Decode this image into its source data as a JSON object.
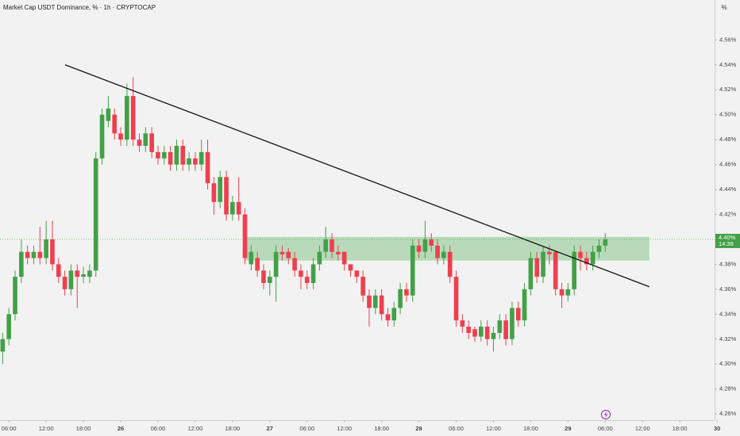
{
  "chart_data": {
    "type": "candlestick",
    "title": "Market Cap USDT Dominance, % · 1h · CRYPTOCAP",
    "unit_label": "%",
    "price_label": "4.40%",
    "countdown": "14:38",
    "up_color": "#43a047",
    "down_color": "#ef3f4f",
    "open": [
      4.31,
      4.32,
      4.34,
      4.37,
      4.39,
      4.385,
      4.39,
      4.385,
      4.4,
      4.38,
      4.37,
      4.36,
      4.375,
      4.37,
      4.37,
      4.375,
      4.465,
      4.495,
      4.5,
      4.485,
      4.48,
      4.515,
      4.48,
      4.475,
      4.485,
      4.47,
      4.465,
      4.47,
      4.46,
      4.475,
      4.46,
      4.465,
      4.46,
      4.47,
      4.445,
      4.43,
      4.45,
      4.42,
      4.43,
      4.42,
      4.38,
      4.385,
      4.375,
      4.365,
      4.37,
      4.39,
      4.39,
      4.385,
      4.375,
      4.37,
      4.365,
      4.38,
      4.39,
      4.4,
      4.39,
      4.39,
      4.38,
      4.375,
      4.37,
      4.355,
      4.345,
      4.355,
      4.34,
      4.335,
      4.345,
      4.36,
      4.355,
      4.395,
      4.39,
      4.4,
      4.395,
      4.385,
      4.39,
      4.37,
      4.335,
      4.33,
      4.328,
      4.322,
      4.33,
      4.32,
      4.325,
      4.335,
      4.32,
      4.345,
      4.335,
      4.36,
      4.385,
      4.37,
      4.39,
      4.39,
      4.36,
      4.355,
      4.36,
      4.39,
      4.385,
      4.38,
      4.39,
      4.395
    ],
    "close": [
      4.32,
      4.34,
      4.37,
      4.39,
      4.385,
      4.39,
      4.385,
      4.4,
      4.38,
      4.37,
      4.36,
      4.375,
      4.37,
      4.372,
      4.375,
      4.465,
      4.5,
      4.505,
      4.485,
      4.48,
      4.515,
      4.48,
      4.475,
      4.485,
      4.47,
      4.465,
      4.47,
      4.46,
      4.475,
      4.46,
      4.465,
      4.46,
      4.47,
      4.445,
      4.43,
      4.45,
      4.42,
      4.43,
      4.42,
      4.385,
      4.39,
      4.375,
      4.365,
      4.37,
      4.39,
      4.388,
      4.385,
      4.375,
      4.37,
      4.365,
      4.38,
      4.39,
      4.4,
      4.39,
      4.388,
      4.38,
      4.375,
      4.37,
      4.355,
      4.345,
      4.355,
      4.34,
      4.335,
      4.345,
      4.36,
      4.355,
      4.395,
      4.39,
      4.4,
      4.395,
      4.385,
      4.39,
      4.37,
      4.335,
      4.33,
      4.325,
      4.322,
      4.33,
      4.32,
      4.325,
      4.335,
      4.32,
      4.345,
      4.335,
      4.36,
      4.385,
      4.37,
      4.39,
      4.388,
      4.36,
      4.355,
      4.36,
      4.39,
      4.385,
      4.38,
      4.39,
      4.395,
      4.4
    ],
    "high": [
      4.325,
      4.345,
      4.375,
      4.4,
      4.395,
      4.395,
      4.41,
      4.415,
      4.415,
      4.385,
      4.375,
      4.38,
      4.38,
      4.378,
      4.38,
      4.47,
      4.505,
      4.515,
      4.505,
      4.49,
      4.525,
      4.53,
      4.485,
      4.49,
      4.49,
      4.475,
      4.475,
      4.475,
      4.48,
      4.48,
      4.47,
      4.47,
      4.48,
      4.48,
      4.45,
      4.455,
      4.455,
      4.435,
      4.45,
      4.425,
      4.395,
      4.39,
      4.38,
      4.375,
      4.395,
      4.395,
      4.393,
      4.39,
      4.38,
      4.375,
      4.385,
      4.395,
      4.41,
      4.405,
      4.395,
      4.39,
      4.38,
      4.375,
      4.375,
      4.36,
      4.36,
      4.36,
      4.345,
      4.35,
      4.365,
      4.365,
      4.4,
      4.4,
      4.415,
      4.405,
      4.4,
      4.395,
      4.395,
      4.375,
      4.34,
      4.335,
      4.33,
      4.335,
      4.335,
      4.33,
      4.34,
      4.34,
      4.35,
      4.35,
      4.365,
      4.39,
      4.39,
      4.395,
      4.395,
      4.39,
      4.365,
      4.365,
      4.395,
      4.395,
      4.39,
      4.395,
      4.4,
      4.405
    ],
    "low": [
      4.3,
      4.315,
      4.335,
      4.365,
      4.38,
      4.38,
      4.38,
      4.38,
      4.375,
      4.365,
      4.355,
      4.355,
      4.345,
      4.365,
      4.365,
      4.37,
      4.46,
      4.49,
      4.48,
      4.475,
      4.475,
      4.475,
      4.47,
      4.47,
      4.465,
      4.46,
      4.46,
      4.455,
      4.455,
      4.455,
      4.455,
      4.455,
      4.455,
      4.44,
      4.42,
      4.425,
      4.415,
      4.415,
      4.415,
      4.38,
      4.375,
      4.37,
      4.36,
      4.355,
      4.35,
      4.383,
      4.38,
      4.37,
      4.36,
      4.36,
      4.36,
      4.375,
      4.385,
      4.385,
      4.383,
      4.375,
      4.37,
      4.365,
      4.35,
      4.33,
      4.34,
      4.335,
      4.33,
      4.33,
      4.34,
      4.35,
      4.35,
      4.385,
      4.385,
      4.39,
      4.38,
      4.38,
      4.365,
      4.33,
      4.325,
      4.32,
      4.318,
      4.318,
      4.315,
      4.31,
      4.32,
      4.315,
      4.315,
      4.33,
      4.33,
      4.355,
      4.365,
      4.365,
      4.38,
      4.355,
      4.345,
      4.35,
      4.355,
      4.375,
      4.375,
      4.375,
      4.385,
      4.39
    ],
    "trendline": {
      "x": [
        10.05,
        104.1
      ],
      "y": [
        4.54,
        4.362
      ]
    },
    "zone": {
      "x": [
        38.9,
        104.1
      ],
      "y": [
        4.383,
        4.402
      ]
    },
    "xlim": [
      -0.43,
      114.6
    ],
    "ylim": [
      4.255,
      4.592
    ],
    "xticks": [
      {
        "value": 1,
        "label": "06:00"
      },
      {
        "value": 7,
        "label": "12:00"
      },
      {
        "value": 13,
        "label": "18:00"
      },
      {
        "value": 19,
        "label": "26"
      },
      {
        "value": 25,
        "label": "06:00"
      },
      {
        "value": 31,
        "label": "12:00"
      },
      {
        "value": 37,
        "label": "18:00"
      },
      {
        "value": 43,
        "label": "27"
      },
      {
        "value": 49,
        "label": "06:00"
      },
      {
        "value": 55,
        "label": "12:00"
      },
      {
        "value": 61,
        "label": "18:00"
      },
      {
        "value": 67,
        "label": "28"
      },
      {
        "value": 73,
        "label": "06:00"
      },
      {
        "value": 79,
        "label": "12:00"
      },
      {
        "value": 85,
        "label": "18:00"
      },
      {
        "value": 91,
        "label": "29"
      },
      {
        "value": 97,
        "label": "06:00"
      },
      {
        "value": 103,
        "label": "12:00"
      },
      {
        "value": 109,
        "label": "18:00"
      },
      {
        "value": 115,
        "label": "30"
      }
    ],
    "yticks": [
      {
        "value": 4.26,
        "label": "4.26%"
      },
      {
        "value": 4.28,
        "label": "4.28%"
      },
      {
        "value": 4.3,
        "label": "4.30%"
      },
      {
        "value": 4.32,
        "label": "4.32%"
      },
      {
        "value": 4.34,
        "label": "4.34%"
      },
      {
        "value": 4.36,
        "label": "4.36%"
      },
      {
        "value": 4.38,
        "label": "4.38%"
      },
      {
        "value": 4.4,
        "label": "4.40%"
      },
      {
        "value": 4.42,
        "label": "4.42%"
      },
      {
        "value": 4.44,
        "label": "4.44%"
      },
      {
        "value": 4.46,
        "label": "4.46%"
      },
      {
        "value": 4.48,
        "label": "4.48%"
      },
      {
        "value": 4.5,
        "label": "4.50%"
      },
      {
        "value": 4.52,
        "label": "4.52%"
      },
      {
        "value": 4.54,
        "label": "4.54%"
      },
      {
        "value": 4.56,
        "label": "4.56%"
      }
    ]
  }
}
